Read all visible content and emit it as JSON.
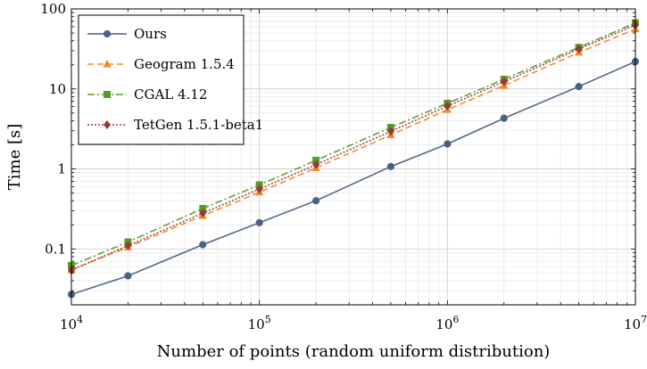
{
  "chart_data": {
    "type": "line",
    "xlabel": "Number of points (random uniform distribution)",
    "ylabel": "Time [s]",
    "x_scale": "log",
    "y_scale": "log",
    "xlim": [
      10000,
      10000000
    ],
    "ylim": [
      0.02,
      100
    ],
    "grid": true,
    "legend_position": "top-left",
    "x_ticks": [
      {
        "value": 10000,
        "mantissa": "10",
        "exp": "4"
      },
      {
        "value": 100000,
        "mantissa": "10",
        "exp": "5"
      },
      {
        "value": 1000000,
        "mantissa": "10",
        "exp": "6"
      },
      {
        "value": 10000000,
        "mantissa": "10",
        "exp": "7"
      }
    ],
    "y_ticks": [
      {
        "value": 0.1,
        "label": "0.1"
      },
      {
        "value": 1,
        "label": "1"
      },
      {
        "value": 10,
        "label": "10"
      },
      {
        "value": 100,
        "label": "100"
      }
    ],
    "series": [
      {
        "name": "Ours",
        "color": "#4a6285",
        "marker": "circle",
        "dash": "",
        "x": [
          10000,
          20000,
          50000,
          100000,
          200000,
          500000,
          1000000,
          2000000,
          5000000,
          10000000
        ],
        "y": [
          0.027,
          0.046,
          0.113,
          0.213,
          0.4,
          1.07,
          2.05,
          4.3,
          10.7,
          22
        ]
      },
      {
        "name": "Geogram 1.5.4",
        "color": "#f0892a",
        "marker": "triangle",
        "dash": "7,4",
        "x": [
          10000,
          20000,
          50000,
          100000,
          200000,
          500000,
          1000000,
          2000000,
          5000000,
          10000000
        ],
        "y": [
          0.055,
          0.105,
          0.26,
          0.51,
          1.03,
          2.65,
          5.5,
          11.0,
          28.5,
          56
        ]
      },
      {
        "name": "CGAL 4.12",
        "color": "#5a9a28",
        "marker": "square",
        "dash": "8,3,2,3",
        "x": [
          10000,
          20000,
          50000,
          100000,
          200000,
          500000,
          1000000,
          2000000,
          5000000,
          10000000
        ],
        "y": [
          0.062,
          0.122,
          0.32,
          0.63,
          1.28,
          3.3,
          6.6,
          13.2,
          33,
          67
        ]
      },
      {
        "name": "TetGen 1.5.1-beta1",
        "color": "#9a3838",
        "marker": "diamond",
        "dash": "2,2",
        "x": [
          10000,
          20000,
          50000,
          100000,
          200000,
          500000,
          1000000,
          2000000,
          5000000,
          10000000
        ],
        "y": [
          0.054,
          0.11,
          0.28,
          0.56,
          1.13,
          2.95,
          6.1,
          12.3,
          31.5,
          63
        ]
      }
    ]
  }
}
